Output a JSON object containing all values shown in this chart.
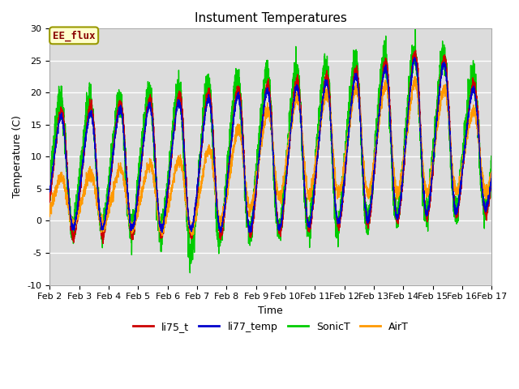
{
  "title": "Instument Temperatures",
  "xlabel": "Time",
  "ylabel": "Temperature (C)",
  "ylim": [
    -10,
    30
  ],
  "xlim_days": [
    2,
    17
  ],
  "bg_color": "#dcdcdc",
  "fig_color": "#ffffff",
  "grid_color": "#ffffff",
  "annotation_text": "EE_flux",
  "annotation_facecolor": "#ffffcc",
  "annotation_edgecolor": "#999900",
  "annotation_textcolor": "#880000",
  "line_colors": {
    "li75_t": "#cc0000",
    "li77_temp": "#0000cc",
    "SonicT": "#00cc00",
    "AirT": "#ff9900"
  },
  "legend_labels": [
    "li75_t",
    "li77_temp",
    "SonicT",
    "AirT"
  ],
  "xtick_labels": [
    "Feb 2",
    "Feb 3",
    "Feb 4",
    "Feb 5",
    "Feb 6",
    "Feb 7",
    "Feb 8",
    "Feb 9",
    "Feb 10",
    "Feb 11",
    "Feb 12",
    "Feb 13",
    "Feb 14",
    "Feb 15",
    "Feb 16",
    "Feb 17"
  ],
  "ytick_values": [
    -10,
    -5,
    0,
    5,
    10,
    15,
    20,
    25,
    30
  ],
  "line_width": 1.0,
  "title_fontsize": 11,
  "label_fontsize": 9,
  "tick_fontsize": 8,
  "legend_fontsize": 9
}
